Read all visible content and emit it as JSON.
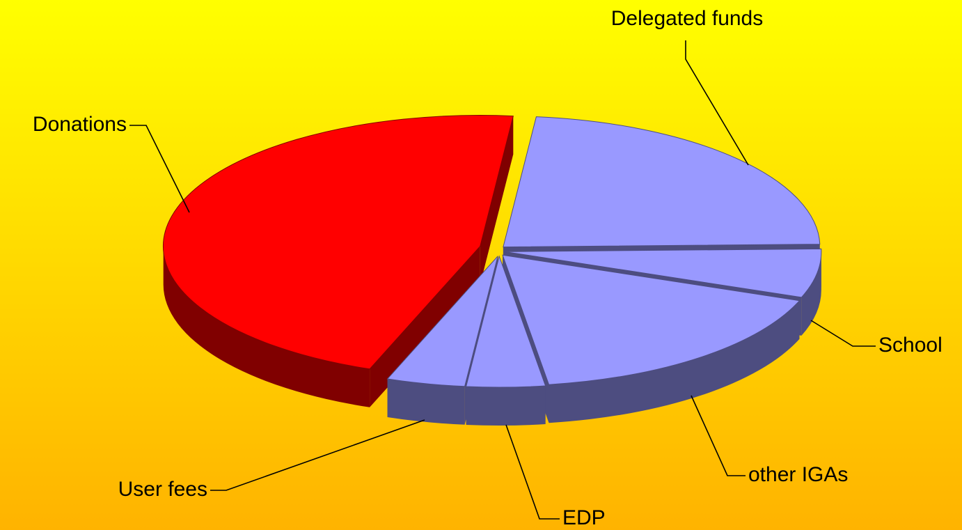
{
  "chart_data": {
    "type": "pie",
    "categories": [
      "Delegated funds",
      "School",
      "other IGAs",
      "EDP",
      "User fees",
      "Donations"
    ],
    "values": [
      23,
      6,
      17,
      4,
      4,
      46
    ],
    "colors": [
      "#9999ff",
      "#9999ff",
      "#9999ff",
      "#9999ff",
      "#9999ff",
      "#ff0000"
    ]
  }
}
